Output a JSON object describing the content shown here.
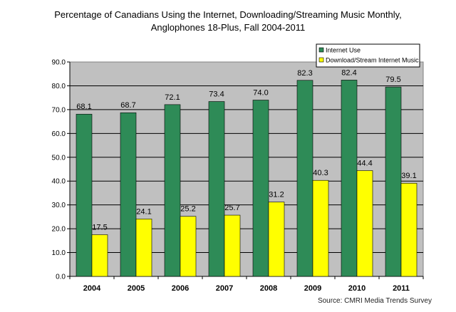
{
  "chart_data": {
    "type": "bar",
    "title_lines": [
      "Percentage of Canadians Using the Internet, Downloading/Streaming Music Monthly,",
      "Anglophones 18-Plus, Fall 2004-2011"
    ],
    "categories": [
      "2004",
      "2005",
      "2006",
      "2007",
      "2008",
      "2009",
      "2010",
      "2011"
    ],
    "series": [
      {
        "name": "Internet Use",
        "color": "#2e8b57",
        "values": [
          68.1,
          68.7,
          72.1,
          73.4,
          74.0,
          82.3,
          82.4,
          79.5
        ]
      },
      {
        "name": "Download/Stream Internet Music",
        "color": "#ffff00",
        "values": [
          17.5,
          24.1,
          25.2,
          25.7,
          31.2,
          40.3,
          44.4,
          39.1
        ]
      }
    ],
    "y_ticks": [
      "0.0",
      "10.0",
      "20.0",
      "30.0",
      "40.0",
      "50.0",
      "60.0",
      "70.0",
      "80.0",
      "90.0"
    ],
    "ylim": [
      0,
      90
    ],
    "xlabel": "",
    "ylabel": "",
    "grid": true,
    "plot_background": "#c0c0c0",
    "legend_position": "top-right",
    "source": "Source: CMRI Media Trends Survey"
  }
}
